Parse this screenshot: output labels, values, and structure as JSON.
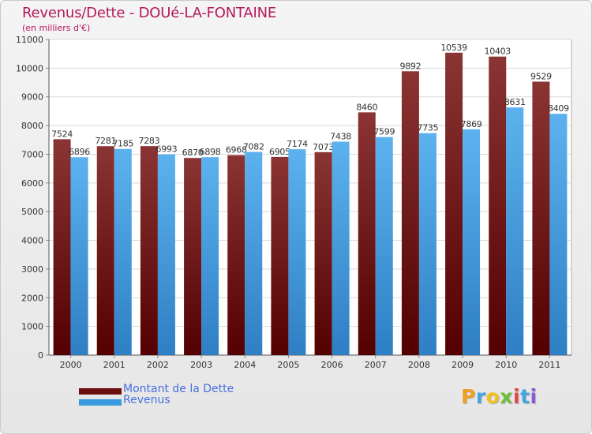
{
  "header": {
    "title": "Revenus/Dette - DOUé-LA-FONTAINE",
    "subtitle": "(en milliers d'€)"
  },
  "chart_data": {
    "type": "bar",
    "categories": [
      "2000",
      "2001",
      "2002",
      "2003",
      "2004",
      "2005",
      "2006",
      "2007",
      "2008",
      "2009",
      "2010",
      "2011"
    ],
    "series": [
      {
        "name": "Montant de la Dette",
        "color": "#7a1f1f",
        "values": [
          7524,
          7281,
          7283,
          6870,
          6968,
          6905,
          7073,
          8460,
          9892,
          10539,
          10403,
          9529
        ]
      },
      {
        "name": "Revenus",
        "color": "#4aa3e6",
        "values": [
          6896,
          7185,
          6993,
          6898,
          7082,
          7174,
          7438,
          7599,
          7735,
          7869,
          8631,
          8409
        ]
      }
    ],
    "ylim": [
      0,
      11000
    ],
    "yticks": [
      0,
      1000,
      2000,
      3000,
      4000,
      5000,
      6000,
      7000,
      8000,
      9000,
      10000,
      11000
    ],
    "grid": true,
    "legend_position": "bottom-left",
    "xlabel": "",
    "ylabel": ""
  },
  "legend": {
    "items": [
      {
        "label": "Montant de la Dette",
        "color": "#6b0e0e"
      },
      {
        "label": "Revenus",
        "color": "#3b9be0"
      }
    ]
  },
  "brand": {
    "letters": [
      "P",
      "r",
      "o",
      "x",
      "i",
      "t",
      "i"
    ],
    "colors": [
      "#f0a020",
      "#46a3e0",
      "#f2c21a",
      "#6cbf3a",
      "#e04a4a",
      "#46a3e0",
      "#8c5ad6"
    ]
  }
}
